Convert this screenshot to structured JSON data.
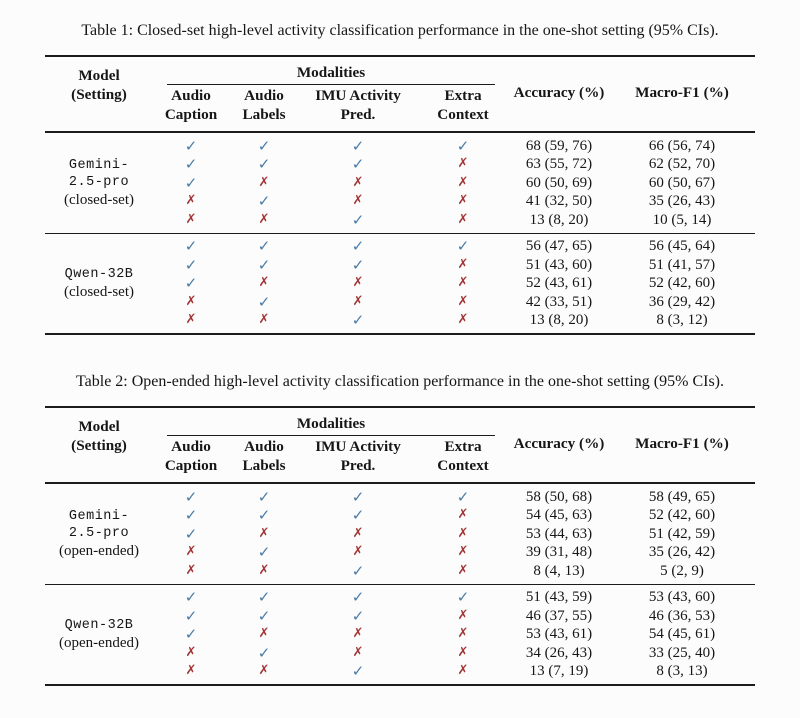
{
  "colors": {
    "check_mark": "#4a7ba7",
    "cross_mark": "#a33636",
    "rule": "#1c1c1c",
    "text": "#161616",
    "background": "#fcfcfc"
  },
  "icons": {
    "check": "✓",
    "cross": "✗"
  },
  "tables": [
    {
      "caption": "Table 1: Closed-set high-level activity classification performance in the one-shot setting (95% CIs).",
      "header": {
        "model_line1": "Model",
        "model_line2": "(Setting)",
        "modalities": "Modalities",
        "col1_line1": "Audio",
        "col1_line2": "Caption",
        "col2_line1": "Audio",
        "col2_line2": "Labels",
        "col3_line1": "IMU Activity",
        "col3_line2": "Pred.",
        "col4_line1": "Extra",
        "col4_line2": "Context",
        "accuracy": "Accuracy (%)",
        "macro_f1": "Macro-F1 (%)"
      },
      "groups": [
        {
          "model_lines": [
            "Gemini-",
            "2.5-pro"
          ],
          "setting": "(closed-set)",
          "rows": [
            {
              "marks": [
                "check",
                "check",
                "check",
                "check"
              ],
              "accuracy": "68 (59, 76)",
              "macro_f1": "66 (56, 74)"
            },
            {
              "marks": [
                "check",
                "check",
                "check",
                "cross"
              ],
              "accuracy": "63 (55, 72)",
              "macro_f1": "62 (52, 70)"
            },
            {
              "marks": [
                "check",
                "cross",
                "cross",
                "cross"
              ],
              "accuracy": "60 (50, 69)",
              "macro_f1": "60 (50, 67)"
            },
            {
              "marks": [
                "cross",
                "check",
                "cross",
                "cross"
              ],
              "accuracy": "41 (32, 50)",
              "macro_f1": "35 (26, 43)"
            },
            {
              "marks": [
                "cross",
                "cross",
                "check",
                "cross"
              ],
              "accuracy": "13 (8, 20)",
              "macro_f1": "10 (5, 14)"
            }
          ]
        },
        {
          "model_lines": [
            "Qwen-32B"
          ],
          "setting": "(closed-set)",
          "rows": [
            {
              "marks": [
                "check",
                "check",
                "check",
                "check"
              ],
              "accuracy": "56 (47, 65)",
              "macro_f1": "56 (45, 64)"
            },
            {
              "marks": [
                "check",
                "check",
                "check",
                "cross"
              ],
              "accuracy": "51 (43, 60)",
              "macro_f1": "51 (41, 57)"
            },
            {
              "marks": [
                "check",
                "cross",
                "cross",
                "cross"
              ],
              "accuracy": "52 (43, 61)",
              "macro_f1": "52 (42, 60)"
            },
            {
              "marks": [
                "cross",
                "check",
                "cross",
                "cross"
              ],
              "accuracy": "42 (33, 51)",
              "macro_f1": "36 (29, 42)"
            },
            {
              "marks": [
                "cross",
                "cross",
                "check",
                "cross"
              ],
              "accuracy": "13 (8, 20)",
              "macro_f1": "8 (3, 12)"
            }
          ]
        }
      ]
    },
    {
      "caption": "Table 2: Open-ended high-level activity classification performance in the one-shot setting (95% CIs).",
      "header": {
        "model_line1": "Model",
        "model_line2": "(Setting)",
        "modalities": "Modalities",
        "col1_line1": "Audio",
        "col1_line2": "Caption",
        "col2_line1": "Audio",
        "col2_line2": "Labels",
        "col3_line1": "IMU Activity",
        "col3_line2": "Pred.",
        "col4_line1": "Extra",
        "col4_line2": "Context",
        "accuracy": "Accuracy (%)",
        "macro_f1": "Macro-F1 (%)"
      },
      "groups": [
        {
          "model_lines": [
            "Gemini-",
            "2.5-pro"
          ],
          "setting": "(open-ended)",
          "rows": [
            {
              "marks": [
                "check",
                "check",
                "check",
                "check"
              ],
              "accuracy": "58 (50, 68)",
              "macro_f1": "58 (49, 65)"
            },
            {
              "marks": [
                "check",
                "check",
                "check",
                "cross"
              ],
              "accuracy": "54 (45, 63)",
              "macro_f1": "52 (42, 60)"
            },
            {
              "marks": [
                "check",
                "cross",
                "cross",
                "cross"
              ],
              "accuracy": "53 (44, 63)",
              "macro_f1": "51 (42, 59)"
            },
            {
              "marks": [
                "cross",
                "check",
                "cross",
                "cross"
              ],
              "accuracy": "39 (31, 48)",
              "macro_f1": "35 (26, 42)"
            },
            {
              "marks": [
                "cross",
                "cross",
                "check",
                "cross"
              ],
              "accuracy": "8 (4, 13)",
              "macro_f1": "5 (2, 9)"
            }
          ]
        },
        {
          "model_lines": [
            "Qwen-32B"
          ],
          "setting": "(open-ended)",
          "rows": [
            {
              "marks": [
                "check",
                "check",
                "check",
                "check"
              ],
              "accuracy": "51 (43, 59)",
              "macro_f1": "53 (43, 60)"
            },
            {
              "marks": [
                "check",
                "check",
                "check",
                "cross"
              ],
              "accuracy": "46 (37, 55)",
              "macro_f1": "46 (36, 53)"
            },
            {
              "marks": [
                "check",
                "cross",
                "cross",
                "cross"
              ],
              "accuracy": "53 (43, 61)",
              "macro_f1": "54 (45, 61)"
            },
            {
              "marks": [
                "cross",
                "check",
                "cross",
                "cross"
              ],
              "accuracy": "34 (26, 43)",
              "macro_f1": "33 (25, 40)"
            },
            {
              "marks": [
                "cross",
                "cross",
                "check",
                "cross"
              ],
              "accuracy": "13 (7, 19)",
              "macro_f1": "8 (3, 13)"
            }
          ]
        }
      ]
    }
  ]
}
